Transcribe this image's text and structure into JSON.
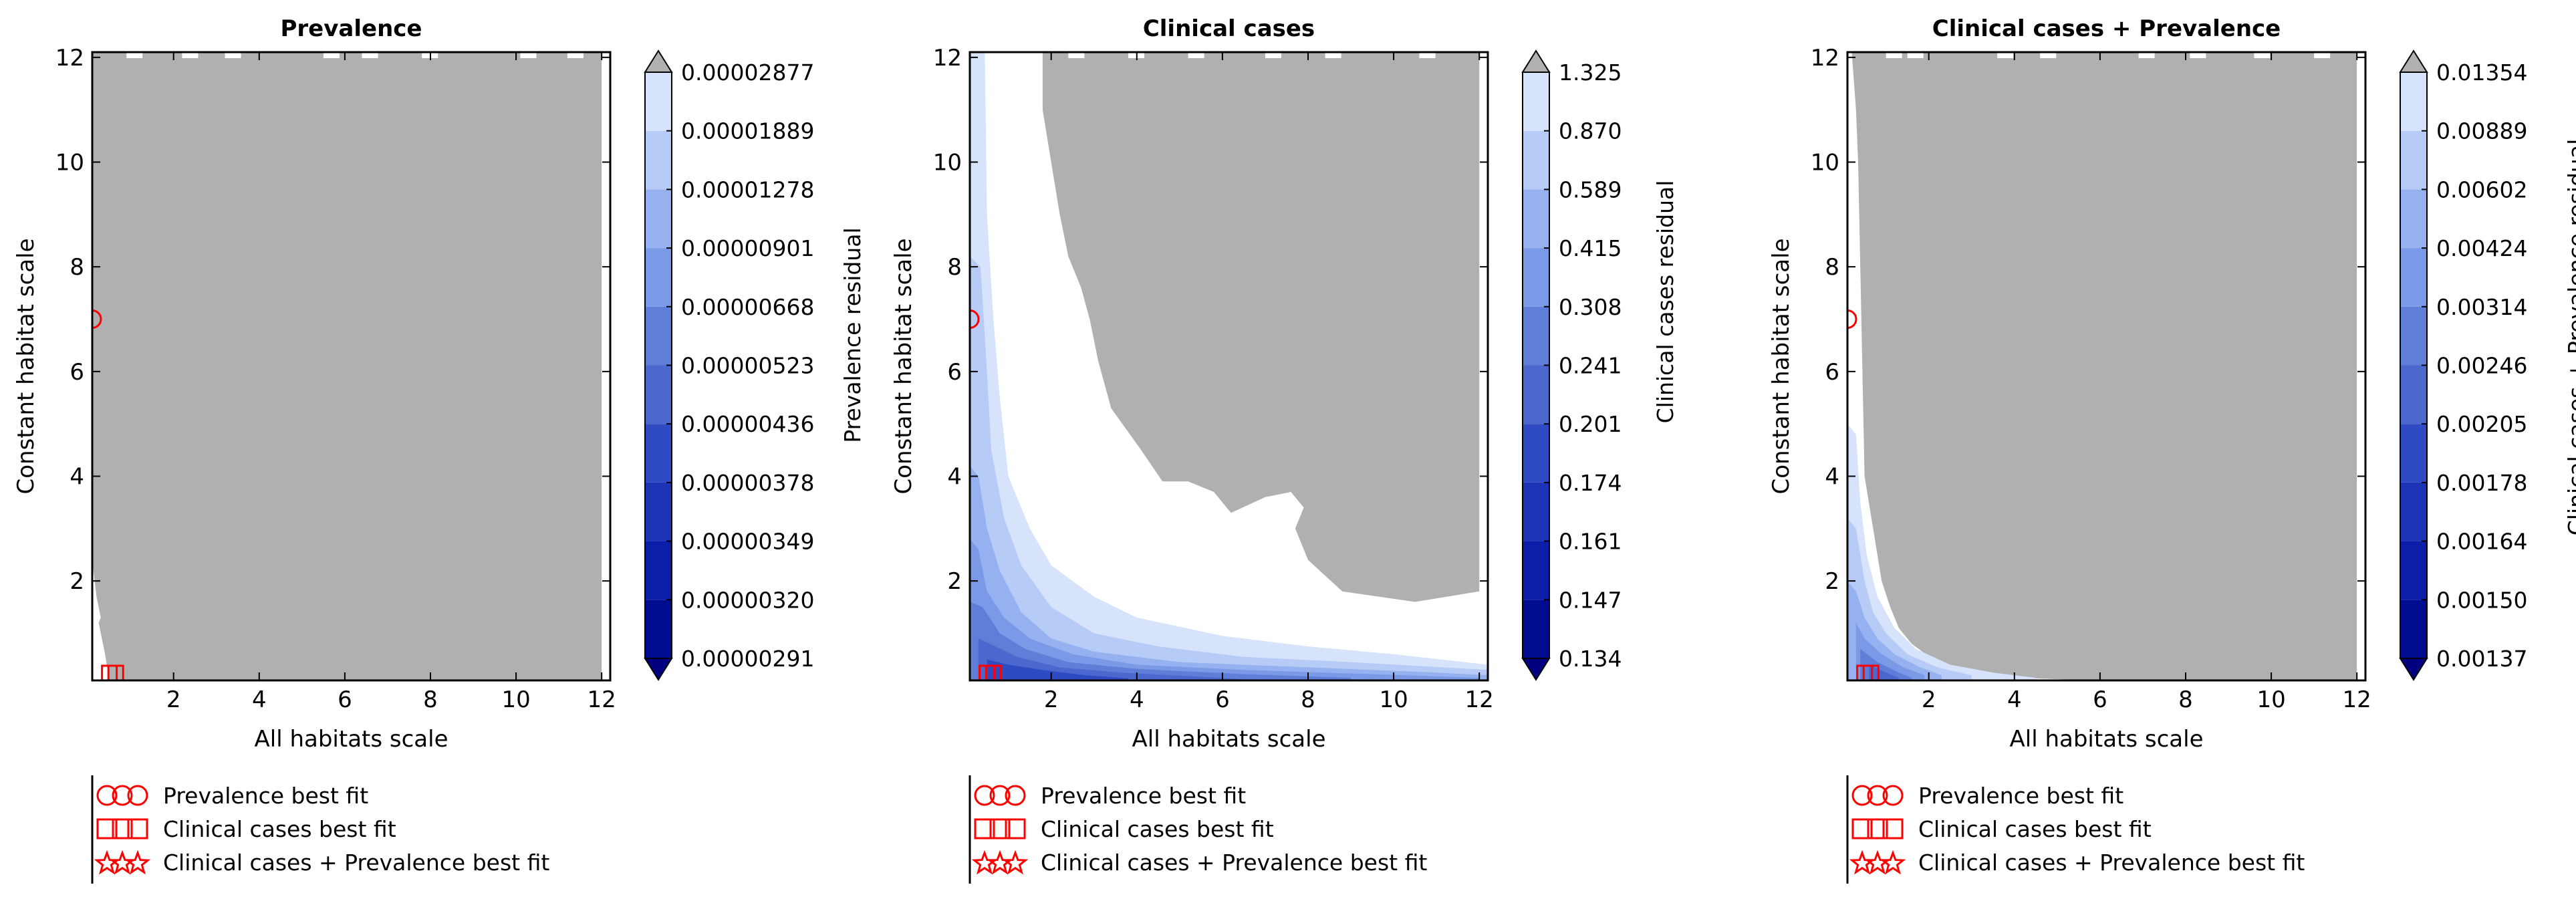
{
  "colors": {
    "deep_navy": "#000080",
    "level_colors": [
      "#000c8f",
      "#0a1ea7",
      "#1c33b5",
      "#2f4bc4",
      "#4c67cd",
      "#5f7ed8",
      "#7a99e6",
      "#95b1ef",
      "#b6cbf5",
      "#d6e3fb",
      "#ffffff"
    ],
    "over_range": "#b0b0b0",
    "marker": "#ff0000",
    "axes": "#000000"
  },
  "legend": {
    "entries": [
      {
        "marker": "circle",
        "label": "Prevalence best fit"
      },
      {
        "marker": "square",
        "label": "Clinical cases best fit"
      },
      {
        "marker": "star",
        "label": "Clinical cases + Prevalence best fit"
      }
    ]
  },
  "chart_data": [
    {
      "type": "contour",
      "title": "Prevalence",
      "xlabel": "All habitats scale",
      "ylabel": "Constant habitat scale",
      "xlim": [
        0.1,
        12.2
      ],
      "ylim": [
        0.1,
        12.1
      ],
      "xticks": [
        2,
        4,
        6,
        8,
        10,
        12
      ],
      "yticks": [
        2,
        4,
        6,
        8,
        10,
        12
      ],
      "colorbar": {
        "label": "Prevalence residual",
        "levels": [
          "0.00000291",
          "0.00000320",
          "0.00000349",
          "0.00000378",
          "0.00000436",
          "0.00000523",
          "0.00000668",
          "0.00000901",
          "0.00001278",
          "0.00001889",
          "0.00002877"
        ],
        "extend": "both"
      },
      "over_region": [
        [
          0.1,
          12.1
        ],
        [
          12,
          12.1
        ],
        [
          12,
          0.1
        ],
        [
          0.5,
          0.1
        ],
        [
          0.4,
          0.6
        ],
        [
          0.25,
          1.2
        ],
        [
          0.3,
          1.3
        ],
        [
          0.2,
          1.7
        ],
        [
          0.1,
          2.4
        ]
      ],
      "bands": [],
      "best_fit": {
        "prevalence": {
          "x": 0.1,
          "y": 7.0
        },
        "clinical_cases": [
          {
            "x": 0.5,
            "y": 0.1
          },
          {
            "x": 0.65,
            "y": 0.1
          }
        ]
      }
    },
    {
      "type": "contour",
      "title": "Clinical cases",
      "xlabel": "All habitats scale",
      "ylabel": "Constant habitat scale",
      "xlim": [
        0.1,
        12.2
      ],
      "ylim": [
        0.1,
        12.1
      ],
      "xticks": [
        2,
        4,
        6,
        8,
        10,
        12
      ],
      "yticks": [
        2,
        4,
        6,
        8,
        10,
        12
      ],
      "colorbar": {
        "label": "Clinical cases residual",
        "levels": [
          "0.134",
          "0.147",
          "0.161",
          "0.174",
          "0.201",
          "0.241",
          "0.308",
          "0.415",
          "0.589",
          "0.870",
          "1.325"
        ],
        "extend": "both"
      },
      "over_region": [
        [
          1.8,
          12.1
        ],
        [
          12,
          12.1
        ],
        [
          12,
          1.8
        ],
        [
          10.5,
          1.6
        ],
        [
          8.8,
          1.8
        ],
        [
          8,
          2.4
        ],
        [
          7.7,
          3.0
        ],
        [
          7.9,
          3.4
        ],
        [
          7.6,
          3.7
        ],
        [
          7.0,
          3.6
        ],
        [
          6.2,
          3.3
        ],
        [
          5.8,
          3.7
        ],
        [
          5.2,
          3.9
        ],
        [
          4.6,
          3.9
        ],
        [
          4.1,
          4.5
        ],
        [
          3.4,
          5.3
        ],
        [
          3.1,
          6.2
        ],
        [
          2.9,
          7.0
        ],
        [
          2.7,
          7.6
        ],
        [
          2.4,
          8.2
        ],
        [
          2.2,
          9.0
        ],
        [
          2.0,
          10.0
        ],
        [
          1.8,
          11.0
        ]
      ],
      "bands": [
        {
          "level_index": 9,
          "points": [
            [
              0.1,
              12.1
            ],
            [
              0.45,
              12.1
            ],
            [
              0.5,
              9.0
            ],
            [
              0.65,
              7.0
            ],
            [
              0.8,
              5.5
            ],
            [
              1.0,
              4.0
            ],
            [
              1.5,
              3.0
            ],
            [
              2.0,
              2.3
            ],
            [
              3.0,
              1.7
            ],
            [
              4.0,
              1.3
            ],
            [
              6.0,
              0.95
            ],
            [
              8.0,
              0.75
            ],
            [
              10.0,
              0.6
            ],
            [
              12.2,
              0.4
            ],
            [
              12.2,
              0.1
            ],
            [
              0.1,
              0.1
            ]
          ]
        },
        {
          "level_index": 8,
          "points": [
            [
              0.1,
              8.2
            ],
            [
              0.35,
              8.0
            ],
            [
              0.5,
              6.0
            ],
            [
              0.6,
              4.5
            ],
            [
              0.9,
              3.2
            ],
            [
              1.3,
              2.3
            ],
            [
              2.0,
              1.5
            ],
            [
              3.0,
              1.0
            ],
            [
              4.5,
              0.75
            ],
            [
              6.5,
              0.55
            ],
            [
              9.0,
              0.45
            ],
            [
              12.2,
              0.3
            ],
            [
              12.2,
              0.1
            ],
            [
              0.1,
              0.1
            ]
          ]
        },
        {
          "level_index": 7,
          "points": [
            [
              0.1,
              4.2
            ],
            [
              0.3,
              4.0
            ],
            [
              0.5,
              3.0
            ],
            [
              0.8,
              2.2
            ],
            [
              1.3,
              1.4
            ],
            [
              2.0,
              0.9
            ],
            [
              3.0,
              0.65
            ],
            [
              5.0,
              0.45
            ],
            [
              8.0,
              0.35
            ],
            [
              11.0,
              0.25
            ],
            [
              12.2,
              0.2
            ],
            [
              12.2,
              0.1
            ],
            [
              0.1,
              0.1
            ]
          ]
        },
        {
          "level_index": 6,
          "points": [
            [
              0.1,
              2.8
            ],
            [
              0.3,
              2.6
            ],
            [
              0.5,
              1.8
            ],
            [
              0.9,
              1.3
            ],
            [
              1.5,
              0.9
            ],
            [
              2.5,
              0.6
            ],
            [
              4.0,
              0.4
            ],
            [
              6.5,
              0.3
            ],
            [
              9.5,
              0.22
            ],
            [
              12.0,
              0.15
            ],
            [
              12.0,
              0.1
            ],
            [
              0.1,
              0.1
            ]
          ]
        },
        {
          "level_index": 5,
          "points": [
            [
              0.1,
              1.6
            ],
            [
              0.4,
              1.5
            ],
            [
              0.8,
              1.0
            ],
            [
              1.4,
              0.7
            ],
            [
              2.4,
              0.45
            ],
            [
              4.0,
              0.32
            ],
            [
              6.5,
              0.22
            ],
            [
              9.0,
              0.15
            ],
            [
              9.0,
              0.1
            ],
            [
              0.1,
              0.1
            ]
          ]
        },
        {
          "level_index": 4,
          "points": [
            [
              0.3,
              0.9
            ],
            [
              0.7,
              0.75
            ],
            [
              1.2,
              0.55
            ],
            [
              2.2,
              0.35
            ],
            [
              3.6,
              0.25
            ],
            [
              5.5,
              0.17
            ],
            [
              6.5,
              0.12
            ],
            [
              6.5,
              0.1
            ],
            [
              0.3,
              0.1
            ]
          ]
        },
        {
          "level_index": 3,
          "points": [
            [
              0.5,
              0.5
            ],
            [
              1.0,
              0.4
            ],
            [
              1.8,
              0.3
            ],
            [
              2.8,
              0.2
            ],
            [
              3.8,
              0.14
            ],
            [
              3.8,
              0.1
            ],
            [
              0.5,
              0.1
            ]
          ]
        }
      ],
      "best_fit": {
        "prevalence": {
          "x": 0.1,
          "y": 7.0
        },
        "clinical_cases": [
          {
            "x": 0.5,
            "y": 0.1
          },
          {
            "x": 0.65,
            "y": 0.1
          }
        ]
      }
    },
    {
      "type": "contour",
      "title": "Clinical cases + Prevalence",
      "xlabel": "All habitats scale",
      "ylabel": "Constant habitat scale",
      "xlim": [
        0.1,
        12.2
      ],
      "ylim": [
        0.1,
        12.1
      ],
      "xticks": [
        2,
        4,
        6,
        8,
        10,
        12
      ],
      "yticks": [
        2,
        4,
        6,
        8,
        10,
        12
      ],
      "colorbar": {
        "label": "Clinical cases + Prevalence residual",
        "levels": [
          "0.00137",
          "0.00150",
          "0.00164",
          "0.00178",
          "0.00205",
          "0.00246",
          "0.00314",
          "0.00424",
          "0.00602",
          "0.00889",
          "0.01354"
        ],
        "extend": "both"
      },
      "over_region": [
        [
          0.2,
          12.1
        ],
        [
          12,
          12.1
        ],
        [
          12,
          0.1
        ],
        [
          6.0,
          0.1
        ],
        [
          4.0,
          0.15
        ],
        [
          3.0,
          0.2
        ],
        [
          2.5,
          0.3
        ],
        [
          2.1,
          0.5
        ],
        [
          1.6,
          0.8
        ],
        [
          1.3,
          1.1
        ],
        [
          1.1,
          1.5
        ],
        [
          0.9,
          2.0
        ],
        [
          0.7,
          3.0
        ],
        [
          0.5,
          4.0
        ],
        [
          0.45,
          6.0
        ],
        [
          0.4,
          8.0
        ],
        [
          0.35,
          10.0
        ],
        [
          0.3,
          11.0
        ]
      ],
      "bands": [
        {
          "level_index": 9,
          "points": [
            [
              0.1,
              5.0
            ],
            [
              0.3,
              4.8
            ],
            [
              0.4,
              3.5
            ],
            [
              0.55,
              2.5
            ],
            [
              0.8,
              1.7
            ],
            [
              1.2,
              1.1
            ],
            [
              1.7,
              0.7
            ],
            [
              2.5,
              0.4
            ],
            [
              3.5,
              0.25
            ],
            [
              4.5,
              0.15
            ],
            [
              4.5,
              0.1
            ],
            [
              0.1,
              0.1
            ]
          ]
        },
        {
          "level_index": 8,
          "points": [
            [
              0.1,
              3.2
            ],
            [
              0.3,
              3.0
            ],
            [
              0.5,
              2.0
            ],
            [
              0.7,
              1.4
            ],
            [
              1.0,
              1.0
            ],
            [
              1.5,
              0.6
            ],
            [
              2.2,
              0.35
            ],
            [
              3.0,
              0.2
            ],
            [
              3.0,
              0.1
            ],
            [
              0.1,
              0.1
            ]
          ]
        },
        {
          "level_index": 7,
          "points": [
            [
              0.1,
              2.0
            ],
            [
              0.3,
              1.8
            ],
            [
              0.5,
              1.3
            ],
            [
              0.8,
              0.9
            ],
            [
              1.2,
              0.6
            ],
            [
              1.8,
              0.35
            ],
            [
              2.3,
              0.2
            ],
            [
              2.3,
              0.1
            ],
            [
              0.1,
              0.1
            ]
          ]
        },
        {
          "level_index": 6,
          "points": [
            [
              0.3,
              1.2
            ],
            [
              0.5,
              0.9
            ],
            [
              0.9,
              0.6
            ],
            [
              1.4,
              0.35
            ],
            [
              1.9,
              0.2
            ],
            [
              1.9,
              0.1
            ],
            [
              0.3,
              0.1
            ]
          ]
        },
        {
          "level_index": 5,
          "points": [
            [
              0.4,
              0.7
            ],
            [
              0.8,
              0.45
            ],
            [
              1.3,
              0.25
            ],
            [
              1.6,
              0.15
            ],
            [
              1.6,
              0.1
            ],
            [
              0.4,
              0.1
            ]
          ]
        },
        {
          "level_index": 4,
          "points": [
            [
              0.6,
              0.4
            ],
            [
              1.0,
              0.25
            ],
            [
              1.3,
              0.15
            ],
            [
              1.3,
              0.1
            ],
            [
              0.6,
              0.1
            ]
          ]
        }
      ],
      "best_fit": {
        "prevalence": {
          "x": 0.1,
          "y": 7.0
        },
        "clinical_cases": [
          {
            "x": 0.5,
            "y": 0.1
          },
          {
            "x": 0.65,
            "y": 0.1
          }
        ]
      }
    }
  ]
}
